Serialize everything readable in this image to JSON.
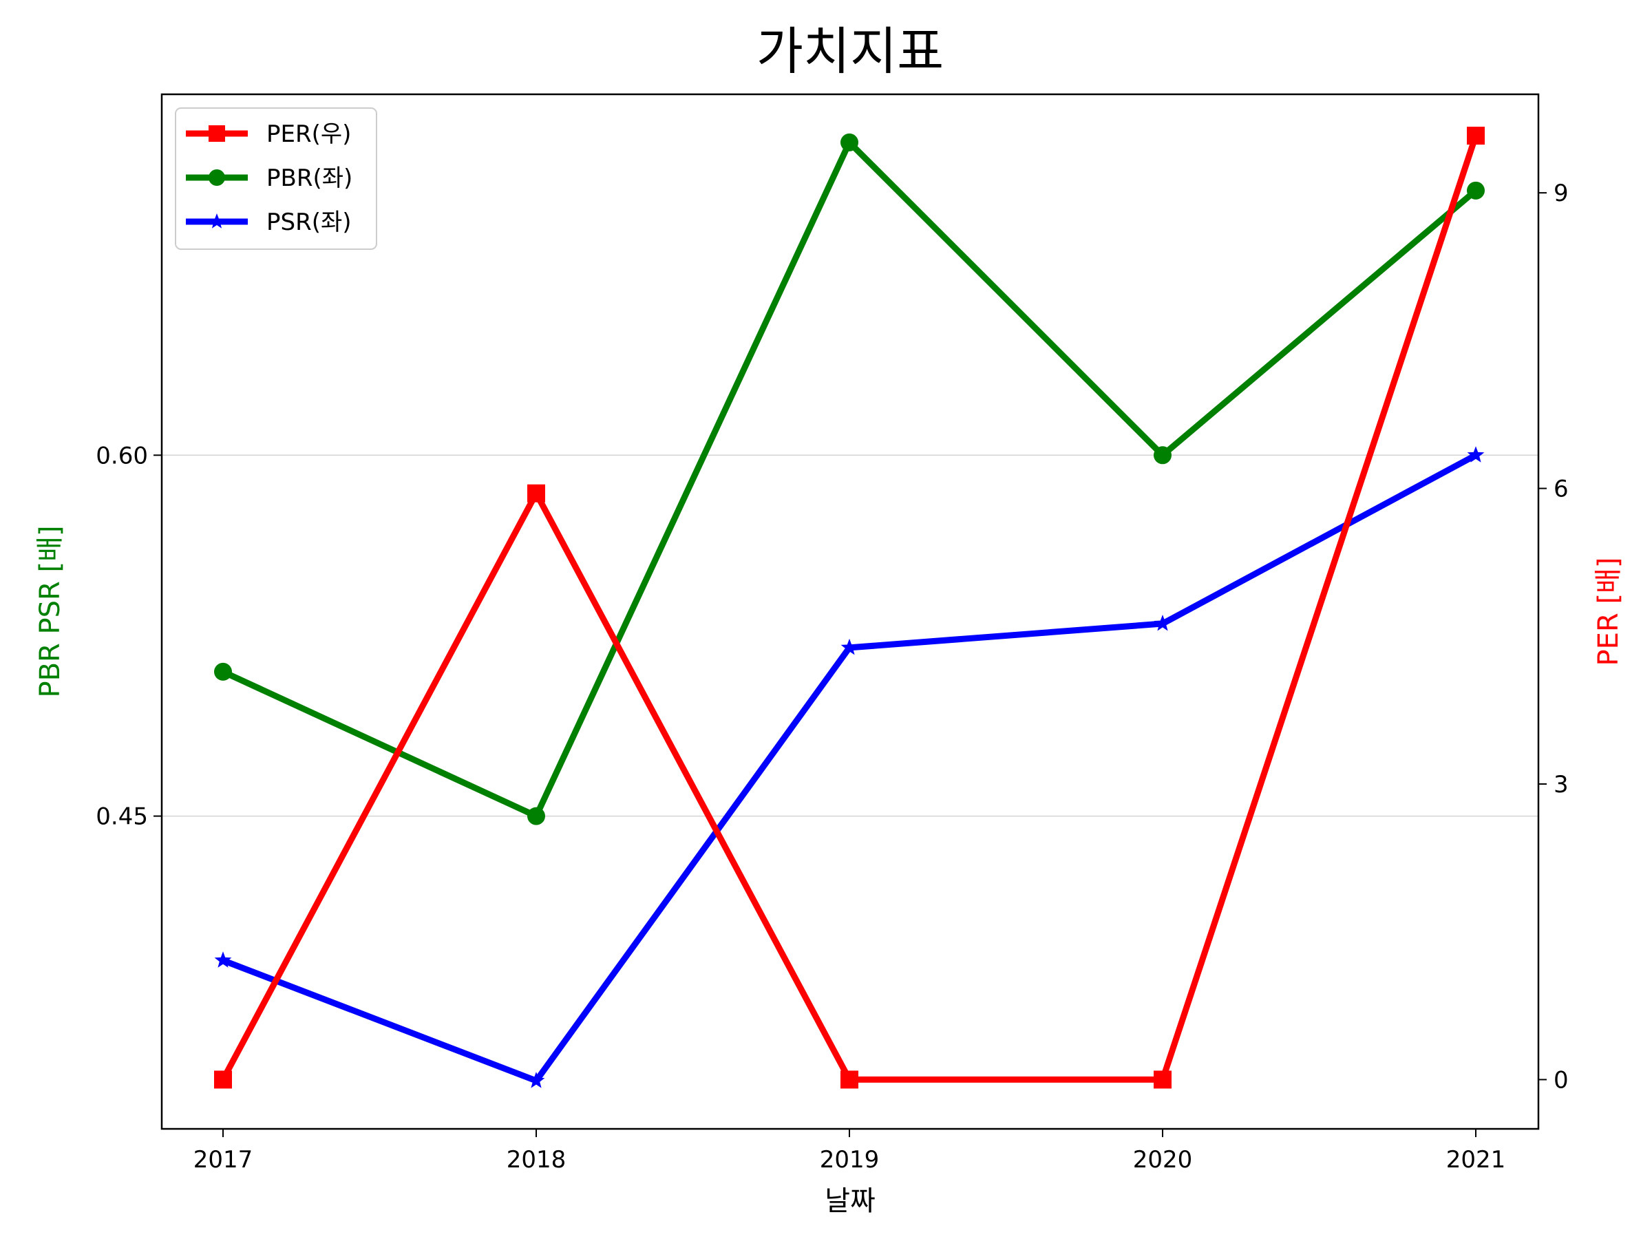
{
  "chart_data": {
    "type": "line",
    "title": "가치지표",
    "xlabel": "날짜",
    "ylabel_left": "PBR PSR [배]",
    "ylabel_right": "PER [배]",
    "categories": [
      "2017",
      "2018",
      "2019",
      "2020",
      "2021"
    ],
    "y_left": {
      "ticks": [
        0.45,
        0.6
      ],
      "tick_labels": [
        "0.45",
        "0.60"
      ],
      "ylim": [
        0.32,
        0.75
      ]
    },
    "y_right": {
      "ticks": [
        0,
        3,
        6,
        9
      ],
      "tick_labels": [
        "0",
        "3",
        "6",
        "9"
      ],
      "ylim": [
        -0.5,
        10.0
      ]
    },
    "grid": "horizontal (left axis)",
    "legend": "upper-left",
    "series": [
      {
        "name": "PER(우)",
        "axis": "right",
        "color": "#ff0000",
        "marker": "square",
        "values": [
          0,
          5.95,
          0,
          0,
          9.58
        ]
      },
      {
        "name": "PBR(좌)",
        "axis": "left",
        "color": "#008000",
        "marker": "circle",
        "values": [
          0.51,
          0.45,
          0.73,
          0.6,
          0.71
        ]
      },
      {
        "name": "PSR(좌)",
        "axis": "left",
        "color": "#0000ff",
        "marker": "star",
        "values": [
          0.39,
          0.34,
          0.52,
          0.53,
          0.6
        ]
      }
    ],
    "label_colors": {
      "ylabel_left": "#008000",
      "ylabel_right": "#ff0000"
    }
  }
}
